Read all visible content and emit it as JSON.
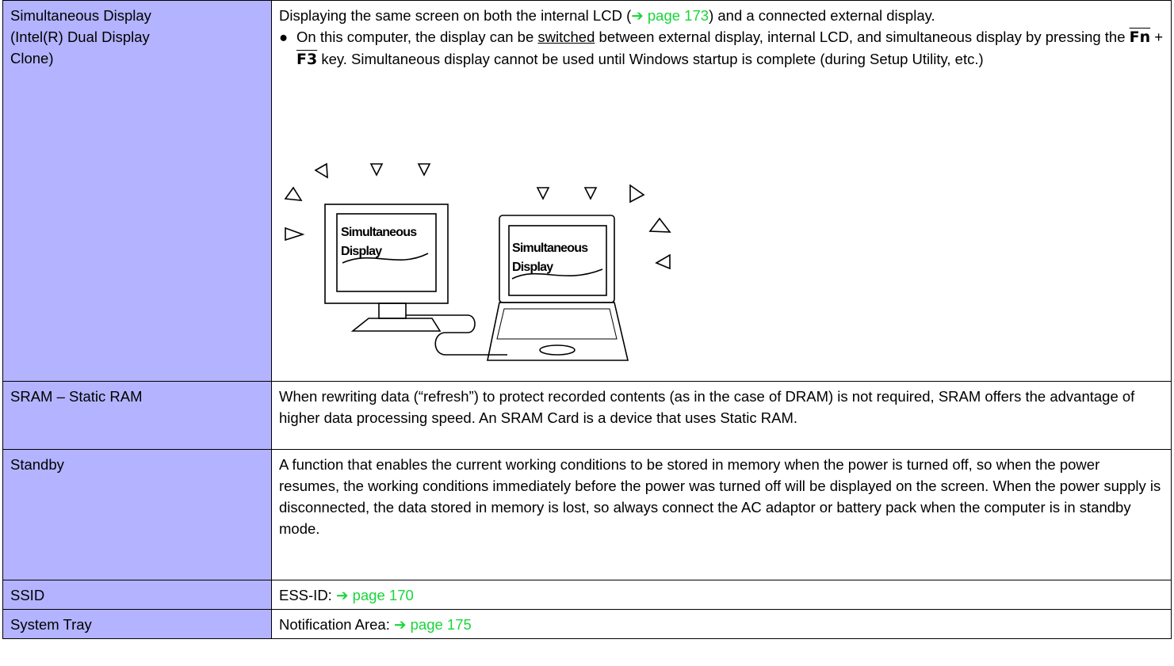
{
  "table": {
    "rows": [
      {
        "term": [
          "Simultaneous Display",
          "(Intel(R) Dual Display",
          "Clone)"
        ],
        "description": {
          "intro": [
            "Displaying the same screen on both the internal LCD (",
            "➔ page 173",
            ") and a connected external display."
          ],
          "bullet": [
            "On this computer, the display can be ",
            "switched",
            " between external display, internal LCD, and simultaneous display by pressing the ",
            "Fn",
            " + ",
            "F3",
            " key. Simultaneous display cannot be used until Windows startup is complete (during Setup Utility, etc.)"
          ],
          "illustration": {
            "monitor_text": [
              "Simultaneous",
              "Display"
            ],
            "laptop_text": [
              "Simultaneous",
              "Display"
            ]
          }
        }
      },
      {
        "term": [
          "SRAM – Static RAM"
        ],
        "description": {
          "text": "When rewriting data (“refresh”) to protect recorded contents (as in the case of DRAM) is not required, SRAM offers the advantage of higher data processing speed. An SRAM Card is a device that uses Static RAM."
        }
      },
      {
        "term": [
          "Standby"
        ],
        "description": {
          "text": "A function that enables the current working conditions to be stored in memory when the power is turned off, so when the power resumes, the working conditions immediately before the power was turned off will be displayed on the screen.  When the power supply is disconnected, the data stored in memory is lost, so always connect the AC adaptor or battery pack when the computer is in standby mode."
        }
      },
      {
        "term": [
          "SSID"
        ],
        "description": {
          "prefix": "ESS-ID: ",
          "link": "➔ page 170"
        }
      },
      {
        "term": [
          "System Tray"
        ],
        "description": {
          "prefix": "Notification Area: ",
          "link": "➔ page 175"
        }
      }
    ]
  }
}
